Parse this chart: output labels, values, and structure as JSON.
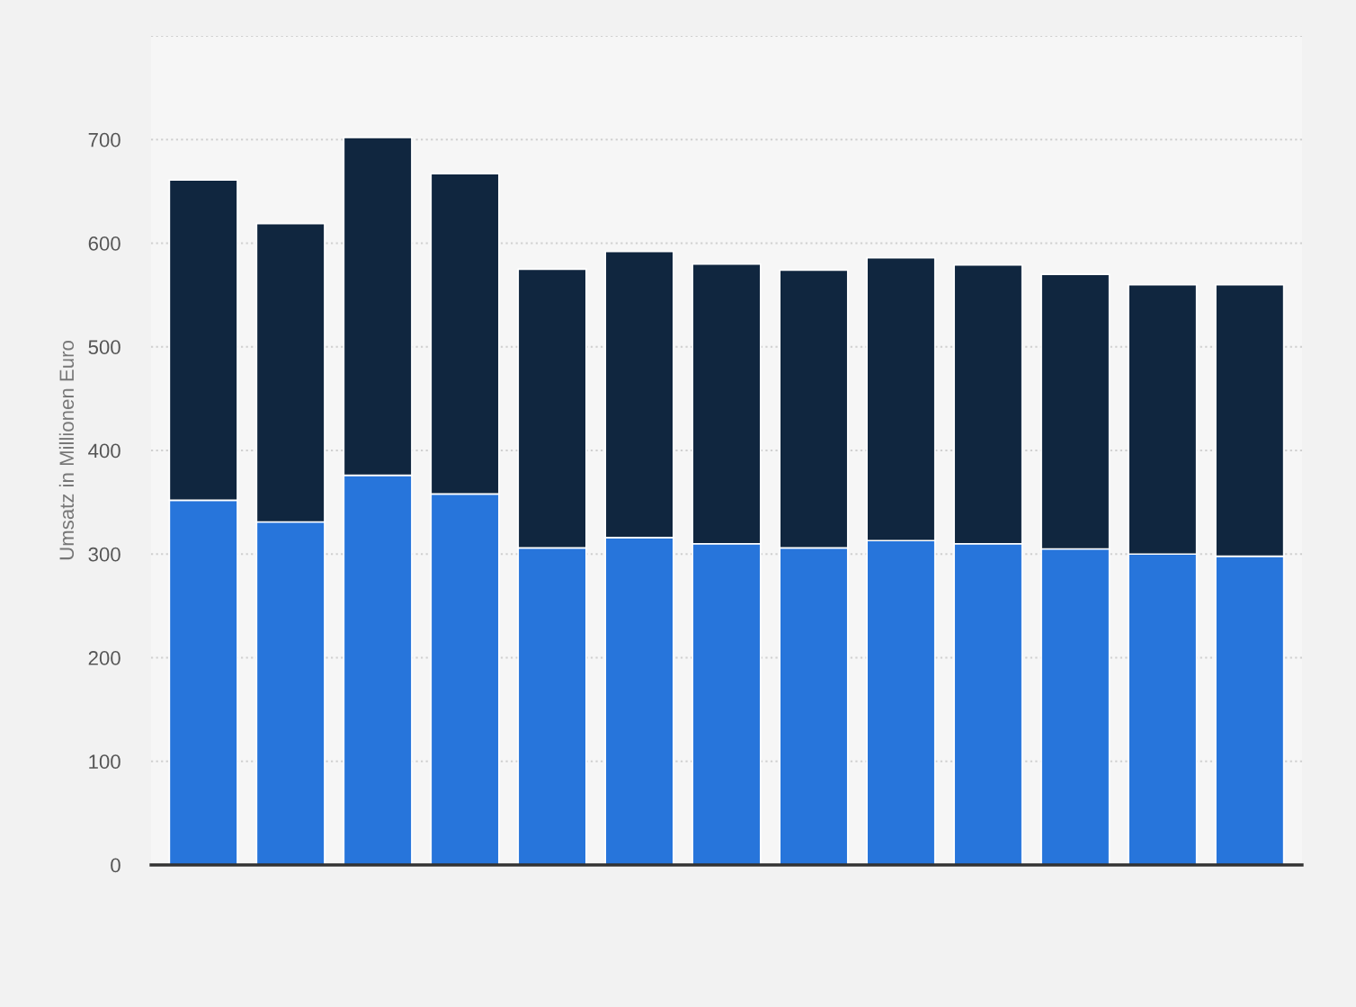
{
  "chart_data": {
    "type": "bar",
    "stacked": true,
    "ylabel": "Umsatz in Millionen Euro",
    "categories": [
      null,
      null,
      null,
      null,
      null,
      null,
      null,
      null,
      null,
      null,
      null,
      null,
      null
    ],
    "series": [
      {
        "color": "#2775db",
        "values": [
          352,
          331,
          376,
          358,
          306,
          316,
          310,
          306,
          313,
          310,
          305,
          300,
          298
        ]
      },
      {
        "color": "#10263f",
        "values": [
          309,
          288,
          326,
          309,
          269,
          276,
          270,
          268,
          273,
          269,
          265,
          260,
          262
        ]
      }
    ],
    "ylim": [
      0,
      800
    ],
    "yticks": [
      0,
      100,
      200,
      300,
      400,
      500,
      600,
      700,
      {
        "value": 800,
        "label": null
      }
    ],
    "grid": "y"
  }
}
